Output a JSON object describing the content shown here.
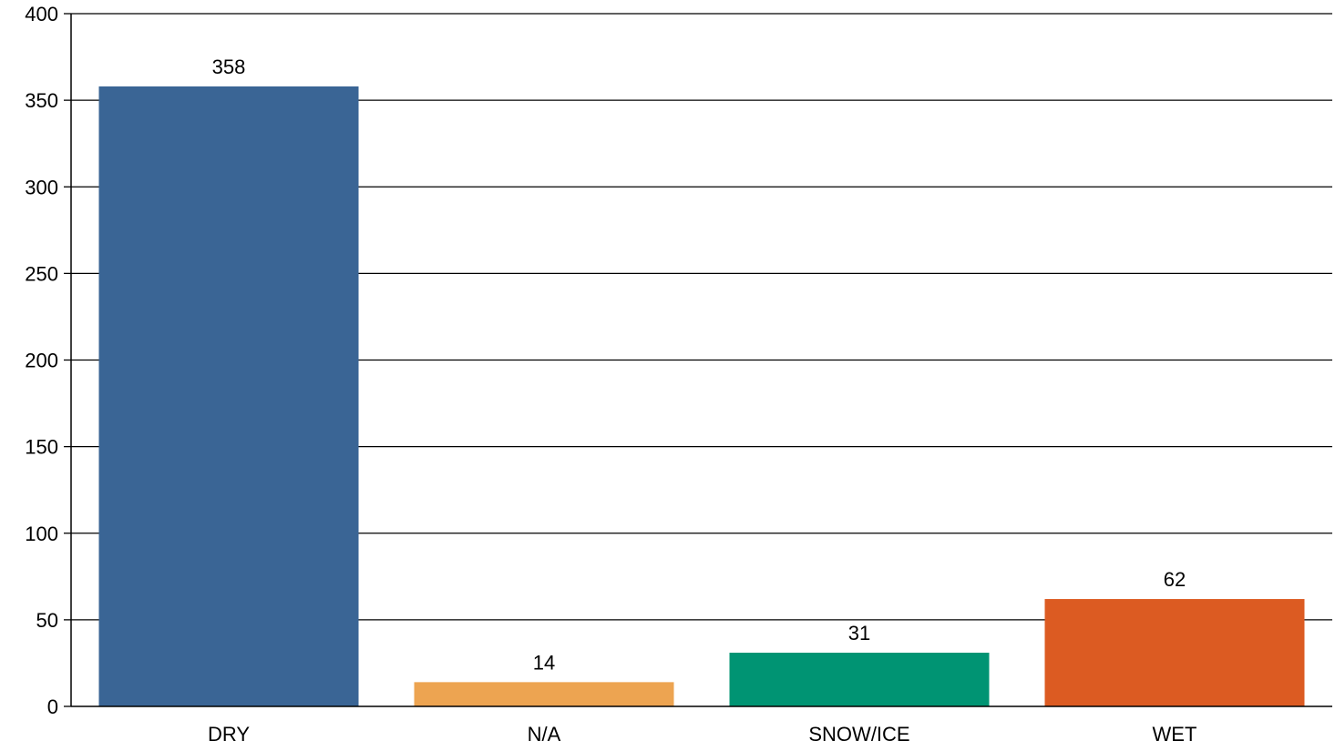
{
  "chart_data": {
    "type": "bar",
    "categories": [
      "DRY",
      "N/A",
      "SNOW/ICE",
      "WET"
    ],
    "values": [
      358,
      14,
      31,
      62
    ],
    "data_labels": [
      "358",
      "14",
      "31",
      "62"
    ],
    "colors": [
      "#3a6595",
      "#eda451",
      "#009473",
      "#dc5b22"
    ],
    "title": "",
    "xlabel": "",
    "ylabel": "",
    "ylim": [
      0,
      400
    ],
    "yticks": [
      0,
      50,
      100,
      150,
      200,
      250,
      300,
      350,
      400
    ],
    "ytick_labels": [
      "0",
      "50",
      "100",
      "150",
      "200",
      "250",
      "300",
      "350",
      "400"
    ],
    "grid": "horizontal",
    "legend": "none"
  }
}
